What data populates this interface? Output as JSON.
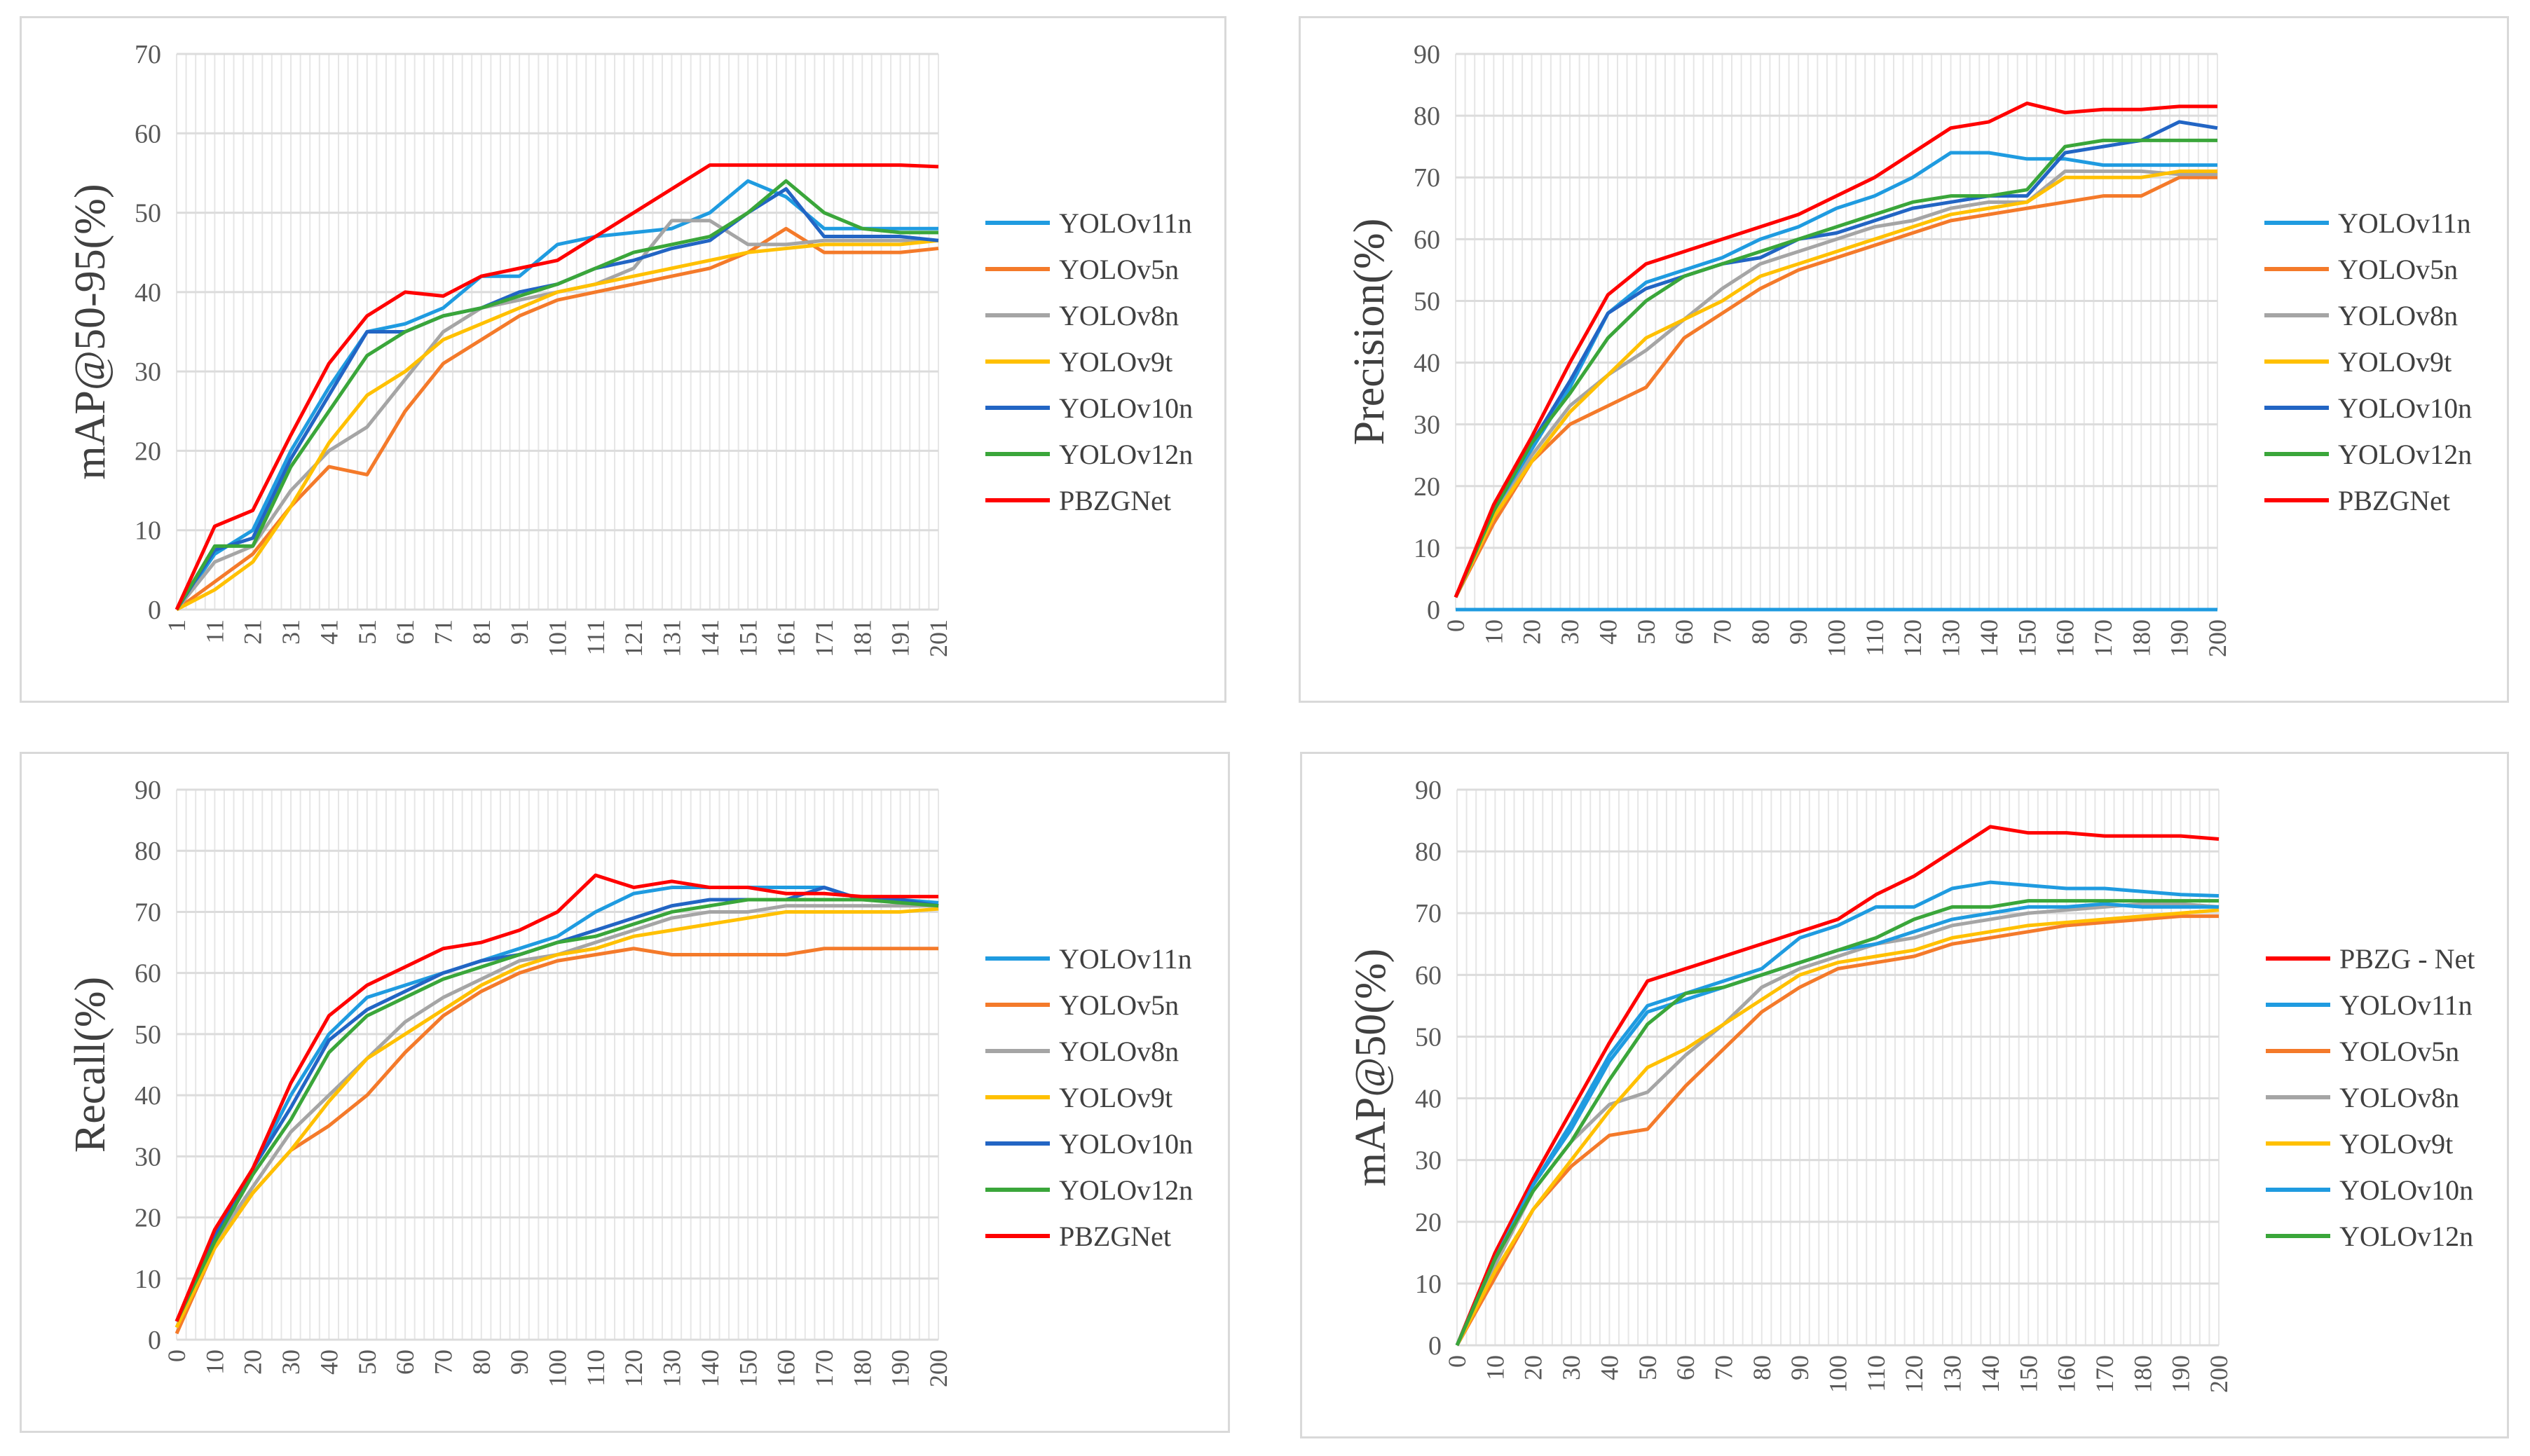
{
  "colors": {
    "YOLOv11n": "#1f9be0",
    "YOLOv5n": "#f47a2a",
    "YOLOv8n": "#a5a5a5",
    "YOLOv9t": "#ffc000",
    "YOLOv10n": "#2265c4",
    "YOLOv12n": "#3aa63a",
    "PBZGNet": "#ff0000",
    "PBZG - Net": "#ff0000"
  },
  "chart_data": [
    {
      "type": "line",
      "title": "",
      "ylabel": "mAP@50-95(%)",
      "xlabel": "",
      "ylim": [
        0,
        70
      ],
      "yticks": [
        0,
        10,
        20,
        30,
        40,
        50,
        60,
        70
      ],
      "xlim": [
        1,
        201
      ],
      "xticks": [
        1,
        11,
        21,
        31,
        41,
        51,
        61,
        71,
        81,
        91,
        101,
        111,
        121,
        131,
        141,
        151,
        161,
        171,
        181,
        191,
        201
      ],
      "grid": true,
      "legend": "right",
      "x": [
        1,
        11,
        21,
        31,
        41,
        51,
        61,
        71,
        81,
        91,
        101,
        111,
        121,
        131,
        141,
        151,
        161,
        171,
        181,
        191,
        201
      ],
      "series": [
        {
          "name": "YOLOv11n",
          "values": [
            0,
            7,
            10,
            20,
            28,
            35,
            36,
            38,
            42,
            42,
            46,
            47,
            47.5,
            48,
            50,
            54,
            52,
            48,
            48,
            48,
            48
          ]
        },
        {
          "name": "YOLOv5n",
          "values": [
            0,
            3.5,
            7,
            13,
            18,
            17,
            25,
            31,
            34,
            37,
            39,
            40,
            41,
            42,
            43,
            45,
            48,
            45,
            45,
            45,
            45.5
          ]
        },
        {
          "name": "YOLOv8n",
          "values": [
            0,
            6,
            8,
            15,
            20,
            23,
            29,
            35,
            38,
            39,
            40,
            41,
            43,
            49,
            49,
            46,
            46,
            46.5,
            46.5,
            46.5,
            46.5
          ]
        },
        {
          "name": "YOLOv9t",
          "values": [
            0,
            2.5,
            6,
            13,
            21,
            27,
            30,
            34,
            36,
            38,
            40,
            41,
            42,
            43,
            44,
            45,
            45.5,
            46,
            46,
            46,
            46.5
          ]
        },
        {
          "name": "YOLOv10n",
          "values": [
            0,
            7.5,
            9,
            19,
            27,
            35,
            35,
            37,
            38,
            40,
            41,
            43,
            44,
            45.5,
            46.5,
            50,
            53,
            47,
            47,
            47,
            46.5
          ]
        },
        {
          "name": "YOLOv12n",
          "values": [
            0,
            8,
            8,
            18,
            25,
            32,
            35,
            37,
            38,
            39.5,
            41,
            43,
            45,
            46,
            47,
            50,
            54,
            50,
            48,
            47.5,
            47.5
          ]
        },
        {
          "name": "PBZGNet",
          "values": [
            0,
            10.5,
            12.5,
            22,
            31,
            37,
            40,
            39.5,
            42,
            43,
            44,
            47,
            50,
            53,
            56,
            56,
            56,
            56,
            56,
            56,
            55.8
          ]
        }
      ]
    },
    {
      "type": "line",
      "title": "",
      "ylabel": "Precision(%)",
      "xlabel": "",
      "ylim": [
        0,
        90
      ],
      "yticks": [
        0,
        10,
        20,
        30,
        40,
        50,
        60,
        70,
        80,
        90
      ],
      "xlim": [
        0,
        200
      ],
      "xticks": [
        0,
        10,
        20,
        30,
        40,
        50,
        60,
        70,
        80,
        90,
        100,
        110,
        120,
        130,
        140,
        150,
        160,
        170,
        180,
        190,
        200
      ],
      "grid": true,
      "legend": "right",
      "x": [
        0,
        10,
        20,
        30,
        40,
        50,
        60,
        70,
        80,
        90,
        100,
        110,
        120,
        130,
        140,
        150,
        160,
        170,
        180,
        190,
        200
      ],
      "series": [
        {
          "name": "YOLOv11n",
          "values": [
            2,
            16,
            26,
            36,
            48,
            53,
            55,
            57,
            60,
            62,
            65,
            67,
            70,
            74,
            74,
            73,
            73,
            72,
            72,
            72,
            72
          ]
        },
        {
          "name": "YOLOv5n",
          "values": [
            2,
            14,
            24,
            30,
            33,
            36,
            44,
            48,
            52,
            55,
            57,
            59,
            61,
            63,
            64,
            65,
            66,
            67,
            67,
            70,
            70
          ]
        },
        {
          "name": "YOLOv8n",
          "values": [
            2,
            15,
            25,
            33,
            38,
            42,
            47,
            52,
            56,
            58,
            60,
            62,
            63,
            65,
            66,
            66,
            71,
            71,
            71,
            70.5,
            70.5
          ]
        },
        {
          "name": "YOLOv9t",
          "values": [
            2,
            15,
            24,
            32,
            38,
            44,
            47,
            50,
            54,
            56,
            58,
            60,
            62,
            64,
            65,
            66,
            70,
            70,
            70,
            71,
            71
          ]
        },
        {
          "name": "YOLOv10n",
          "values": [
            2,
            16,
            27,
            37,
            48,
            52,
            54,
            56,
            57,
            60,
            61,
            63,
            65,
            66,
            67,
            67,
            74,
            75,
            76,
            79,
            78
          ]
        },
        {
          "name": "YOLOv12n",
          "values": [
            2,
            16,
            27,
            35,
            44,
            50,
            54,
            56,
            58,
            60,
            62,
            64,
            66,
            67,
            67,
            68,
            75,
            76,
            76,
            76,
            76
          ]
        },
        {
          "name": "PBZGNet",
          "values": [
            2,
            17,
            28,
            40,
            51,
            56,
            58,
            60,
            62,
            64,
            67,
            70,
            74,
            78,
            79,
            82,
            80.5,
            81,
            81,
            81.5,
            81.5
          ]
        },
        {
          "name": "YOLOv11n",
          "legend": false,
          "values": [
            0,
            0,
            0,
            0,
            0,
            0,
            0,
            0,
            0,
            0,
            0,
            0,
            0,
            0,
            0,
            0,
            0,
            0,
            0,
            0,
            0
          ]
        }
      ]
    },
    {
      "type": "line",
      "title": "",
      "ylabel": "Recall(%)",
      "xlabel": "",
      "ylim": [
        0,
        90
      ],
      "yticks": [
        0,
        10,
        20,
        30,
        40,
        50,
        60,
        70,
        80,
        90
      ],
      "xlim": [
        0,
        200
      ],
      "xticks": [
        0,
        10,
        20,
        30,
        40,
        50,
        60,
        70,
        80,
        90,
        100,
        110,
        120,
        130,
        140,
        150,
        160,
        170,
        180,
        190,
        200
      ],
      "grid": true,
      "legend": "right",
      "x": [
        0,
        10,
        20,
        30,
        40,
        50,
        60,
        70,
        80,
        90,
        100,
        110,
        120,
        130,
        140,
        150,
        160,
        170,
        180,
        190,
        200
      ],
      "series": [
        {
          "name": "YOLOv11n",
          "values": [
            3,
            17,
            28,
            40,
            50,
            56,
            58,
            60,
            62,
            64,
            66,
            70,
            73,
            74,
            74,
            74,
            74,
            74,
            72,
            72,
            71.5
          ]
        },
        {
          "name": "YOLOv5n",
          "values": [
            1,
            15,
            24,
            31,
            35,
            40,
            47,
            53,
            57,
            60,
            62,
            63,
            64,
            63,
            63,
            63,
            63,
            64,
            64,
            64,
            64
          ]
        },
        {
          "name": "YOLOv8n",
          "values": [
            2,
            16,
            25,
            34,
            40,
            46,
            52,
            56,
            59,
            62,
            63,
            65,
            67,
            69,
            70,
            70,
            71,
            71,
            71,
            71,
            71
          ]
        },
        {
          "name": "YOLOv9t",
          "values": [
            2,
            15,
            24,
            31,
            39,
            46,
            50,
            54,
            58,
            61,
            63,
            64,
            66,
            67,
            68,
            69,
            70,
            70,
            70,
            70,
            70.5
          ]
        },
        {
          "name": "YOLOv10n",
          "values": [
            3,
            17,
            28,
            38,
            49,
            54,
            57,
            60,
            62,
            63,
            65,
            67,
            69,
            71,
            72,
            72,
            72,
            74,
            72,
            72,
            71
          ]
        },
        {
          "name": "YOLOv12n",
          "values": [
            3,
            16,
            27,
            36,
            47,
            53,
            56,
            59,
            61,
            63,
            65,
            66,
            68,
            70,
            71,
            72,
            72,
            72,
            72,
            71.5,
            71
          ]
        },
        {
          "name": "PBZGNet",
          "values": [
            3,
            18,
            28,
            42,
            53,
            58,
            61,
            64,
            65,
            67,
            70,
            76,
            74,
            75,
            74,
            74,
            73,
            73,
            72.5,
            72.5,
            72.5
          ]
        }
      ]
    },
    {
      "type": "line",
      "title": "",
      "ylabel": "mAP@50(%)",
      "xlabel": "",
      "ylim": [
        0,
        90
      ],
      "yticks": [
        0,
        10,
        20,
        30,
        40,
        50,
        60,
        70,
        80,
        90
      ],
      "xlim": [
        0,
        200
      ],
      "xticks": [
        0,
        10,
        20,
        30,
        40,
        50,
        60,
        70,
        80,
        90,
        100,
        110,
        120,
        130,
        140,
        150,
        160,
        170,
        180,
        190,
        200
      ],
      "grid": true,
      "legend": "right",
      "x": [
        0,
        10,
        20,
        30,
        40,
        50,
        60,
        70,
        80,
        90,
        100,
        110,
        120,
        130,
        140,
        150,
        160,
        170,
        180,
        190,
        200
      ],
      "series": [
        {
          "name": "PBZG - Net",
          "values": [
            0,
            15,
            27,
            38,
            49,
            59,
            61,
            63,
            65,
            67,
            69,
            73,
            76,
            80,
            84,
            83,
            83,
            82.5,
            82.5,
            82.5,
            82
          ]
        },
        {
          "name": "YOLOv11n",
          "values": [
            0,
            14,
            26,
            36,
            47,
            55,
            57,
            59,
            61,
            66,
            68,
            71,
            71,
            74,
            75,
            74.5,
            74,
            74,
            73.5,
            73,
            72.8
          ]
        },
        {
          "name": "YOLOv5n",
          "values": [
            0,
            11,
            22,
            29,
            34,
            35,
            42,
            48,
            54,
            58,
            61,
            62,
            63,
            65,
            66,
            67,
            68,
            68.5,
            69,
            69.5,
            69.5
          ]
        },
        {
          "name": "YOLOv8n",
          "values": [
            0,
            13,
            25,
            33,
            39,
            41,
            47,
            52,
            58,
            61,
            63,
            65,
            66,
            68,
            69,
            70,
            70.5,
            71,
            71.5,
            71.5,
            71
          ]
        },
        {
          "name": "YOLOv9t",
          "values": [
            0,
            12,
            22,
            30,
            38,
            45,
            48,
            52,
            56,
            60,
            62,
            63,
            64,
            66,
            67,
            68,
            68.5,
            69,
            69.5,
            70,
            70.5
          ]
        },
        {
          "name": "YOLOv10n",
          "color": "#1f9be0",
          "values": [
            0,
            14,
            26,
            35,
            46,
            54,
            56,
            58,
            60,
            62,
            64,
            65,
            67,
            69,
            70,
            71,
            71,
            71.5,
            71,
            71,
            71
          ]
        },
        {
          "name": "YOLOv12n",
          "values": [
            0,
            14,
            25,
            33,
            43,
            52,
            57,
            58,
            60,
            62,
            64,
            66,
            69,
            71,
            71,
            72,
            72,
            72,
            72,
            72,
            72
          ]
        }
      ]
    }
  ]
}
